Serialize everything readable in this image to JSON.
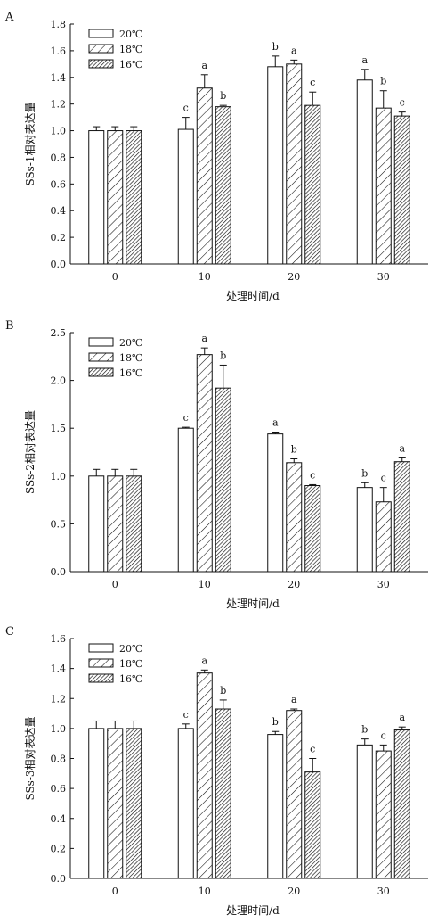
{
  "legend": [
    "20℃",
    "18℃",
    "16℃"
  ],
  "colors": {
    "ink": "#111111",
    "bar_fill": "#ffffff"
  },
  "chart_data": [
    {
      "type": "bar",
      "panel": "A",
      "ylabel": "SSs-1相对表达量",
      "xlabel": "处理时间/d",
      "categories": [
        "0",
        "10",
        "20",
        "30"
      ],
      "ylim": [
        0,
        1.8
      ],
      "yticks": [
        "0.0",
        "0.2",
        "0.4",
        "0.6",
        "0.8",
        "1.0",
        "1.2",
        "1.4",
        "1.6",
        "1.8"
      ],
      "grid": false,
      "legend_position": "top-left",
      "series": [
        {
          "name": "20℃",
          "pattern": "white",
          "values": [
            1.0,
            1.01,
            1.48,
            1.38
          ],
          "errors": [
            0.03,
            0.09,
            0.08,
            0.08
          ],
          "labels": [
            "",
            "c",
            "b",
            "a"
          ]
        },
        {
          "name": "18℃",
          "pattern": "hatch-sparse",
          "values": [
            1.0,
            1.32,
            1.5,
            1.17
          ],
          "errors": [
            0.03,
            0.1,
            0.03,
            0.13
          ],
          "labels": [
            "",
            "a",
            "a",
            "b"
          ]
        },
        {
          "name": "16℃",
          "pattern": "hatch-dense",
          "values": [
            1.0,
            1.18,
            1.19,
            1.11
          ],
          "errors": [
            0.03,
            0.01,
            0.1,
            0.03
          ],
          "labels": [
            "",
            "b",
            "c",
            "c"
          ]
        }
      ]
    },
    {
      "type": "bar",
      "panel": "B",
      "ylabel": "SSs-2相对表达量",
      "xlabel": "处理时间/d",
      "categories": [
        "0",
        "10",
        "20",
        "30"
      ],
      "ylim": [
        0,
        2.5
      ],
      "yticks": [
        "0.0",
        "0.5",
        "1.0",
        "1.5",
        "2.0",
        "2.5"
      ],
      "grid": false,
      "legend_position": "top-left",
      "series": [
        {
          "name": "20℃",
          "pattern": "white",
          "values": [
            1.0,
            1.5,
            1.44,
            0.88
          ],
          "errors": [
            0.07,
            0.01,
            0.02,
            0.05
          ],
          "labels": [
            "",
            "c",
            "a",
            "b"
          ]
        },
        {
          "name": "18℃",
          "pattern": "hatch-sparse",
          "values": [
            1.0,
            2.27,
            1.14,
            0.73
          ],
          "errors": [
            0.07,
            0.07,
            0.04,
            0.15
          ],
          "labels": [
            "",
            "a",
            "b",
            "c"
          ]
        },
        {
          "name": "16℃",
          "pattern": "hatch-dense",
          "values": [
            1.0,
            1.92,
            0.9,
            1.15
          ],
          "errors": [
            0.07,
            0.24,
            0.01,
            0.04
          ],
          "labels": [
            "",
            "b",
            "c",
            "a"
          ]
        }
      ]
    },
    {
      "type": "bar",
      "panel": "C",
      "ylabel": "SSs-3相对表达量",
      "xlabel": "处理时间/d",
      "categories": [
        "0",
        "10",
        "20",
        "30"
      ],
      "ylim": [
        0,
        1.6
      ],
      "yticks": [
        "0.0",
        "0.2",
        "0.4",
        "0.6",
        "0.8",
        "1.0",
        "1.2",
        "1.4",
        "1.6"
      ],
      "grid": false,
      "legend_position": "top-left",
      "series": [
        {
          "name": "20℃",
          "pattern": "white",
          "values": [
            1.0,
            1.0,
            0.96,
            0.89
          ],
          "errors": [
            0.05,
            0.03,
            0.02,
            0.04
          ],
          "labels": [
            "",
            "c",
            "b",
            "b"
          ]
        },
        {
          "name": "18℃",
          "pattern": "hatch-sparse",
          "values": [
            1.0,
            1.37,
            1.12,
            0.85
          ],
          "errors": [
            0.05,
            0.02,
            0.01,
            0.04
          ],
          "labels": [
            "",
            "a",
            "a",
            "c"
          ]
        },
        {
          "name": "16℃",
          "pattern": "hatch-dense",
          "values": [
            1.0,
            1.13,
            0.71,
            0.99
          ],
          "errors": [
            0.05,
            0.06,
            0.09,
            0.02
          ],
          "labels": [
            "",
            "b",
            "c",
            "a"
          ]
        }
      ]
    }
  ]
}
